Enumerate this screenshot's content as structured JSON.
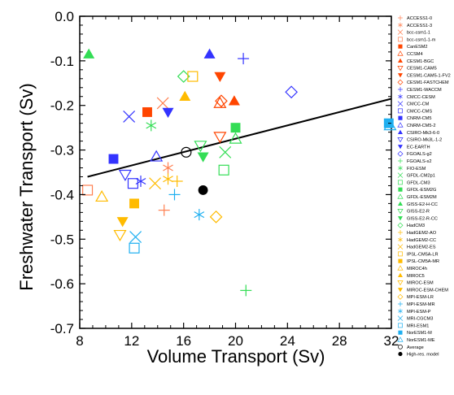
{
  "chart_data": {
    "type": "scatter",
    "xlabel": "Volume Transport (Sv)",
    "ylabel": "Freshwater Transport (Sv)",
    "xlim": [
      8,
      32
    ],
    "ylim": [
      -0.7,
      0.0
    ],
    "xticks": [
      "8",
      "12",
      "16",
      "20",
      "24",
      "28",
      "32"
    ],
    "yticks": [
      "0.0",
      "-0.1",
      "-0.2",
      "-0.3",
      "-0.4",
      "-0.5",
      "-0.6",
      "-0.7"
    ],
    "grid": false,
    "legend_position": "right",
    "regression_line": {
      "x": [
        8.6,
        32
      ],
      "y": [
        -0.36,
        -0.185
      ]
    },
    "series": [
      {
        "name": "ACCESS1-0",
        "marker": "plus",
        "color": "#ff7f50",
        "x": 14.5,
        "y": -0.435
      },
      {
        "name": "ACCESS1-3",
        "marker": "asterisk",
        "color": "#ff7f50",
        "x": 14.8,
        "y": -0.34
      },
      {
        "name": "bcc-csm1-1",
        "marker": "cross",
        "color": "#ff7f50",
        "x": 14.4,
        "y": -0.195
      },
      {
        "name": "bcc-csm1-1-m",
        "marker": "square-open",
        "color": "#ff7f50",
        "x": 8.6,
        "y": -0.39
      },
      {
        "name": "CanESM2",
        "marker": "square-filled",
        "color": "#ff4500",
        "x": 13.2,
        "y": -0.215
      },
      {
        "name": "CCSM4",
        "marker": "triangle-up-open",
        "color": "#ff4500",
        "x": 18.8,
        "y": -0.195
      },
      {
        "name": "CESM1-BGC",
        "marker": "triangle-up-filled",
        "color": "#ff4500",
        "x": 19.9,
        "y": -0.19
      },
      {
        "name": "CESM1-CAM5",
        "marker": "triangle-down-open",
        "color": "#ff4500",
        "x": 18.8,
        "y": -0.27
      },
      {
        "name": "CESM1-CAM5-1-FV2",
        "marker": "triangle-down-filled",
        "color": "#ff4500",
        "x": 18.8,
        "y": -0.135
      },
      {
        "name": "CESM1-FASTCHEM",
        "marker": "diamond-open",
        "color": "#ff4500",
        "x": 18.9,
        "y": -0.19
      },
      {
        "name": "CESM1-WACCM",
        "marker": "plus",
        "color": "#3333ff",
        "x": 20.6,
        "y": -0.095
      },
      {
        "name": "CMCC-CESM",
        "marker": "asterisk",
        "color": "#3333ff",
        "x": 12.7,
        "y": -0.37
      },
      {
        "name": "CMCC-CM",
        "marker": "cross",
        "color": "#3333ff",
        "x": 11.8,
        "y": -0.225
      },
      {
        "name": "CMCC-CMS",
        "marker": "square-open",
        "color": "#3333ff",
        "x": 12.1,
        "y": -0.375
      },
      {
        "name": "CNRM-CM5",
        "marker": "square-filled",
        "color": "#3333ff",
        "x": 10.6,
        "y": -0.32
      },
      {
        "name": "CNRM-CM5-2",
        "marker": "triangle-up-open",
        "color": "#3333ff",
        "x": 13.9,
        "y": -0.315
      },
      {
        "name": "CSIRO-Mk3-6-0",
        "marker": "triangle-up-filled",
        "color": "#3333ff",
        "x": 18.0,
        "y": -0.085
      },
      {
        "name": "CSIRO-Mk3L-1-2",
        "marker": "triangle-down-open",
        "color": "#3333ff",
        "x": 11.5,
        "y": -0.355
      },
      {
        "name": "EC-EARTH",
        "marker": "triangle-down-filled",
        "color": "#3333ff",
        "x": 14.8,
        "y": -0.215
      },
      {
        "name": "FGOALS-g2",
        "marker": "diamond-open",
        "color": "#3333ff",
        "x": 24.3,
        "y": -0.17
      },
      {
        "name": "FGOALS-s2",
        "marker": "plus",
        "color": "#33dd55",
        "x": 20.8,
        "y": -0.615
      },
      {
        "name": "FIO-ESM",
        "marker": "asterisk",
        "color": "#33dd55",
        "x": 13.5,
        "y": -0.245
      },
      {
        "name": "GFDL-CM2p1",
        "marker": "cross",
        "color": "#33dd55",
        "x": 19.2,
        "y": -0.305
      },
      {
        "name": "GFDL-CM3",
        "marker": "square-open",
        "color": "#33dd55",
        "x": 19.1,
        "y": -0.345
      },
      {
        "name": "GFDL-ESM2G",
        "marker": "square-filled",
        "color": "#33dd55",
        "x": 20.0,
        "y": -0.25
      },
      {
        "name": "GFDL-ESM2M",
        "marker": "triangle-up-open",
        "color": "#33dd55",
        "x": 20.0,
        "y": -0.275
      },
      {
        "name": "GISS-E2-H-CC",
        "marker": "triangle-up-filled",
        "color": "#33dd55",
        "x": 8.7,
        "y": -0.085
      },
      {
        "name": "GISS-E2-R",
        "marker": "triangle-down-open",
        "color": "#33dd55",
        "x": 17.3,
        "y": -0.29
      },
      {
        "name": "GISS-E2-R-CC",
        "marker": "triangle-down-filled",
        "color": "#33dd55",
        "x": 17.5,
        "y": -0.315
      },
      {
        "name": "HadCM3",
        "marker": "diamond-open",
        "color": "#33dd55",
        "x": 16.0,
        "y": -0.135
      },
      {
        "name": "HadGEM2-AO",
        "marker": "plus",
        "color": "#ffbb00",
        "x": 15.5,
        "y": -0.37
      },
      {
        "name": "HadGEM2-CC",
        "marker": "asterisk",
        "color": "#ffbb00",
        "x": 14.8,
        "y": -0.365
      },
      {
        "name": "HadGEM2-ES",
        "marker": "cross",
        "color": "#ffbb00",
        "x": 13.8,
        "y": -0.375
      },
      {
        "name": "IPSL-CM5A-LR",
        "marker": "square-open",
        "color": "#ffbb00",
        "x": 16.7,
        "y": -0.135
      },
      {
        "name": "IPSL-CM5A-MR",
        "marker": "square-filled",
        "color": "#ffbb00",
        "x": 12.2,
        "y": -0.42
      },
      {
        "name": "MIROC4h",
        "marker": "triangle-up-open",
        "color": "#ffbb00",
        "x": 9.7,
        "y": -0.405
      },
      {
        "name": "MIROC5",
        "marker": "triangle-up-filled",
        "color": "#ffbb00",
        "x": 16.1,
        "y": -0.18
      },
      {
        "name": "MIROC-ESM",
        "marker": "triangle-down-open",
        "color": "#ffbb00",
        "x": 11.1,
        "y": -0.49
      },
      {
        "name": "MIROC-ESM-CHEM",
        "marker": "triangle-down-filled",
        "color": "#ffbb00",
        "x": 11.3,
        "y": -0.46
      },
      {
        "name": "MPI-ESM-LR",
        "marker": "diamond-open",
        "color": "#ffbb00",
        "x": 18.5,
        "y": -0.45
      },
      {
        "name": "MPI-ESM-MR",
        "marker": "plus",
        "color": "#1eaff0",
        "x": 15.3,
        "y": -0.4
      },
      {
        "name": "MPI-ESM-P",
        "marker": "asterisk",
        "color": "#1eaff0",
        "x": 17.2,
        "y": -0.445
      },
      {
        "name": "MRI-CGCM3",
        "marker": "cross",
        "color": "#1eaff0",
        "x": 12.3,
        "y": -0.495
      },
      {
        "name": "MRI-ESM1",
        "marker": "square-open",
        "color": "#1eaff0",
        "x": 12.2,
        "y": -0.52
      },
      {
        "name": "NorESM1-M",
        "marker": "square-filled",
        "color": "#1eaff0",
        "x": 31.8,
        "y": -0.24
      },
      {
        "name": "NorESM1-ME",
        "marker": "triangle-up-open",
        "color": "#1eaff0",
        "x": 31.9,
        "y": -0.245
      },
      {
        "name": "Average",
        "marker": "circle-open",
        "color": "#000000",
        "x": 16.2,
        "y": -0.305
      },
      {
        "name": "High-res. model",
        "marker": "circle-filled",
        "color": "#000000",
        "x": 17.5,
        "y": -0.39
      }
    ]
  }
}
